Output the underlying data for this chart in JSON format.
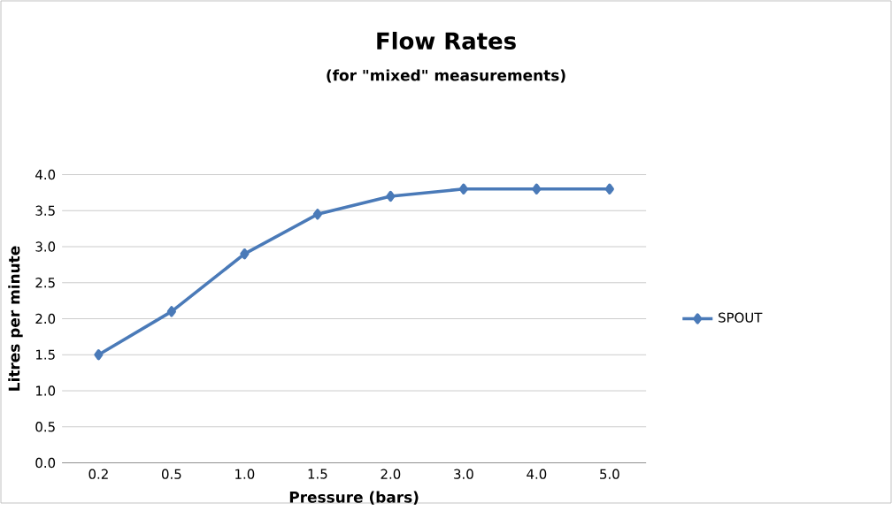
{
  "chart_data": {
    "type": "line",
    "title": "Flow Rates",
    "subtitle": "(for \"mixed\" measurements)",
    "xlabel": "Pressure (bars)",
    "ylabel": "Litres per minute",
    "categories": [
      "0.2",
      "0.5",
      "1.0",
      "1.5",
      "2.0",
      "3.0",
      "4.0",
      "5.0"
    ],
    "series": [
      {
        "name": "SPOUT",
        "color": "#4a7ab8",
        "values": [
          1.5,
          2.1,
          2.9,
          3.45,
          3.7,
          3.8,
          3.8,
          3.8
        ]
      }
    ],
    "ylim": [
      0,
      4
    ],
    "yticks": [
      {
        "value": 0,
        "label": "0.0"
      },
      {
        "value": 0.5,
        "label": "0.5"
      },
      {
        "value": 1,
        "label": "1.0"
      },
      {
        "value": 1.5,
        "label": "1.5"
      },
      {
        "value": 2,
        "label": "2.0"
      },
      {
        "value": 2.5,
        "label": "2.5"
      },
      {
        "value": 3,
        "label": "3.0"
      },
      {
        "value": 3.5,
        "label": "3.5"
      },
      {
        "value": 4,
        "label": "4.0"
      }
    ],
    "grid": "y",
    "legend": "right",
    "marker": "diamond",
    "line_style": "solid"
  }
}
